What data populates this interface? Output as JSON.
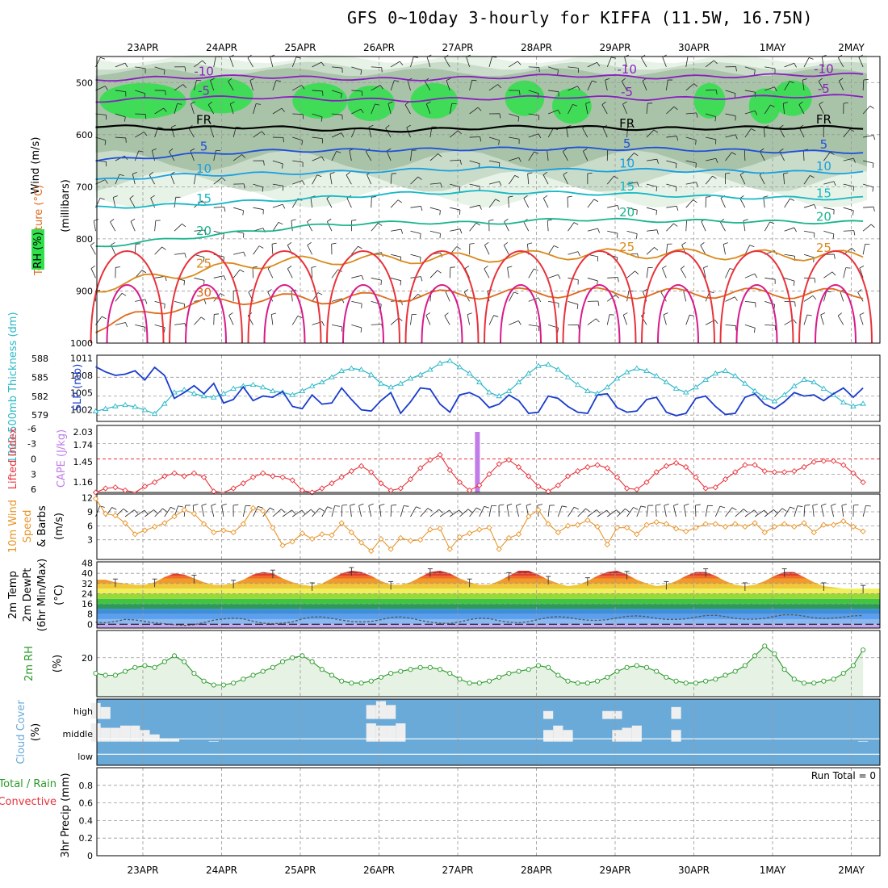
{
  "title": "GFS 0~10day 3-hourly for KIFFA (11.5W, 16.75N)",
  "dates": [
    "23APR",
    "24APR",
    "25APR",
    "26APR",
    "27APR",
    "28APR",
    "29APR",
    "30APR",
    "1MAY",
    "2MAY"
  ],
  "run_total": "Run Total = 0",
  "colors": {
    "purple": "#8a1fc0",
    "black": "#000000",
    "blue": "#1f4fd8",
    "lightblue": "#1aa0e0",
    "teal": "#17b8c4",
    "seagreen": "#19b48c",
    "orange": "#d98a1c",
    "darkorange": "#e06a1c",
    "red": "#e8323a",
    "magenta": "#d81a8a",
    "rhgreen": "#2ee04a",
    "slp": "#1a3ccc",
    "thick": "#2ab8c8",
    "cape": "#c07ce8",
    "li": "#e8323a",
    "wind": "#e8952a",
    "rh2m": "#2a9a2a",
    "cloud": "#6aaad8"
  },
  "chart_data": [
    {
      "type": "contour",
      "name": "upper-air cross-section",
      "ylabel_parts": [
        "Wind (m/s)",
        "Temperature (°C)",
        "RH (%)",
        "(millibars)"
      ],
      "ylim": [
        1000,
        450
      ],
      "yticks": [
        500,
        600,
        700,
        800,
        900,
        1000
      ],
      "isotherms": [
        {
          "label": "-10",
          "levels": [
            495,
            490,
            488,
            492,
            494,
            490,
            486,
            490,
            488,
            485
          ]
        },
        {
          "label": "-5",
          "levels": [
            535,
            530,
            528,
            532,
            534,
            530,
            527,
            531,
            529,
            526
          ]
        },
        {
          "label": "FR",
          "levels": [
            583,
            588,
            585,
            590,
            592,
            586,
            585,
            589,
            587,
            586
          ]
        },
        {
          "label": "5",
          "levels": [
            650,
            640,
            632,
            630,
            629,
            627,
            627,
            627,
            630,
            633
          ]
        },
        {
          "label": "10",
          "levels": [
            688,
            678,
            675,
            672,
            668,
            665,
            668,
            668,
            670,
            672
          ]
        },
        {
          "label": "15",
          "levels": [
            740,
            735,
            728,
            720,
            712,
            710,
            712,
            715,
            720,
            722
          ]
        },
        {
          "label": "20",
          "levels": [
            815,
            800,
            785,
            772,
            768,
            770,
            762,
            765,
            766,
            768
          ]
        },
        {
          "label": "25",
          "levels": [
            895,
            868,
            848,
            840,
            838,
            835,
            830,
            828,
            830,
            832
          ]
        },
        {
          "label": "30",
          "levels": [
            970,
            930,
            915,
            915,
            910,
            905,
            903,
            905,
            904,
            905
          ]
        }
      ],
      "contour_labels": [
        "-10",
        "-5",
        "FR",
        "5",
        "10",
        "15",
        "20",
        "25",
        "30"
      ]
    },
    {
      "type": "line",
      "name": "SLP and thickness",
      "ylabel_left": "1000-500mb Thickness (dm)",
      "ylabel_right": "SLP (mb)",
      "yticks_thickness": [
        579,
        582,
        585,
        588
      ],
      "yticks_slp": [
        1002,
        1005,
        1008,
        1011
      ],
      "slp_mb": [
        1009.5,
        1008.6,
        1008.0,
        1008.2,
        1008.8,
        1007.2,
        1009.4,
        1008.0,
        1004.0,
        1005.0,
        1006.2,
        1004.8,
        1006.6,
        1003.2,
        1003.8,
        1006.0,
        1003.6,
        1004.4,
        1004.2,
        1005.2,
        1002.6,
        1002.2,
        1004.6,
        1003.0,
        1003.2,
        1005.8,
        1003.8,
        1002.0,
        1001.8,
        1003.6,
        1005.0,
        1001.4,
        1003.4,
        1005.8,
        1005.6,
        1003.0,
        1001.6,
        1004.6,
        1005.0,
        1004.2,
        1002.4,
        1003.0,
        1004.6,
        1003.6,
        1001.4,
        1001.6,
        1004.4,
        1004.0,
        1002.6,
        1001.6,
        1001.4,
        1004.6,
        1004.8,
        1002.4,
        1001.6,
        1001.8,
        1003.8,
        1004.2,
        1001.6,
        1001.0,
        1001.4,
        1004.0,
        1004.4,
        1002.6,
        1001.2,
        1001.4,
        1004.2,
        1004.8,
        1003.0,
        1002.2,
        1003.4,
        1005.0,
        1004.4,
        1004.6,
        1003.6,
        1004.8,
        1005.8,
        1004.2,
        1005.8
      ],
      "thickness_dm": [
        579.6,
        580.0,
        580.4,
        580.6,
        580.3,
        579.8,
        579.2,
        580.8,
        582.6,
        583.0,
        582.4,
        582.0,
        581.8,
        582.4,
        583.2,
        583.6,
        583.8,
        583.4,
        582.8,
        582.6,
        582.2,
        582.8,
        583.6,
        584.2,
        585.0,
        586.0,
        586.4,
        586.2,
        585.4,
        584.0,
        583.4,
        584.0,
        584.8,
        585.4,
        586.2,
        587.2,
        587.6,
        586.6,
        585.6,
        584.2,
        582.6,
        582.0,
        582.8,
        584.2,
        585.6,
        586.8,
        587.0,
        586.2,
        585.0,
        583.8,
        582.8,
        582.4,
        583.4,
        584.8,
        585.8,
        586.4,
        586.0,
        585.2,
        584.2,
        583.2,
        582.6,
        583.4,
        584.6,
        585.6,
        586.0,
        585.2,
        584.0,
        582.8,
        581.8,
        581.2,
        582.2,
        583.6,
        584.6,
        584.2,
        583.2,
        582.2,
        581.0,
        580.4,
        580.8
      ]
    },
    {
      "type": "line",
      "name": "Lifted index and CAPE",
      "ylabel_left": "Lifted Index",
      "ylabel_right": "CAPE (J/kg)",
      "yticks_li": [
        "-6",
        "-3",
        "0",
        "3",
        "6"
      ],
      "yticks_cape": [
        "2.03",
        "1.74",
        "1.45",
        "1.16"
      ],
      "cape_spike_day": 4.25,
      "lifted_index": [
        6.6,
        5.8,
        5.6,
        6.2,
        6.8,
        5.4,
        4.6,
        3.4,
        2.8,
        3.4,
        2.8,
        3.6,
        6.4,
        6.8,
        5.8,
        4.8,
        3.6,
        2.8,
        3.4,
        3.6,
        4.2,
        6.2,
        6.6,
        5.8,
        4.8,
        3.6,
        2.4,
        1.4,
        2.6,
        4.8,
        6.2,
        5.8,
        4.0,
        1.8,
        0.2,
        -0.8,
        2.2,
        4.6,
        6.2,
        5.2,
        3.0,
        1.0,
        0.2,
        1.6,
        3.4,
        5.4,
        6.4,
        5.2,
        3.4,
        2.4,
        1.6,
        1.2,
        1.8,
        3.6,
        5.8,
        6.0,
        4.6,
        2.6,
        1.4,
        0.8,
        1.6,
        3.6,
        5.8,
        5.6,
        4.0,
        2.6,
        1.2,
        1.2,
        2.4,
        2.6,
        2.6,
        2.4,
        1.6,
        0.6,
        0.4,
        0.4,
        1.2,
        2.8,
        4.6
      ]
    },
    {
      "type": "line",
      "name": "10m wind",
      "ylabel_parts": [
        "10m Wind",
        "Speed",
        "& Barbs",
        "(m/s)"
      ],
      "yticks": [
        3,
        6,
        9,
        12
      ],
      "wind_speed_ms": [
        11.8,
        8.6,
        8.2,
        6.6,
        4.2,
        5.0,
        5.8,
        6.6,
        8.0,
        9.4,
        8.6,
        6.4,
        4.6,
        5.0,
        4.6,
        6.4,
        9.8,
        9.2,
        5.6,
        1.8,
        2.6,
        4.4,
        3.2,
        4.2,
        4.0,
        6.6,
        4.6,
        2.4,
        0.6,
        3.2,
        1.0,
        3.4,
        2.8,
        3.0,
        5.2,
        5.4,
        1.0,
        3.6,
        4.4,
        5.2,
        5.6,
        1.0,
        3.4,
        4.2,
        8.0,
        9.4,
        6.4,
        4.6,
        6.0,
        6.2,
        7.2,
        5.8,
        2.0,
        5.6,
        5.6,
        4.2,
        6.2,
        6.8,
        6.4,
        5.4,
        4.8,
        5.6,
        6.4,
        6.4,
        5.8,
        6.4,
        5.8,
        6.6,
        4.6,
        5.8,
        6.4,
        5.8,
        6.6,
        4.6,
        6.2,
        6.2,
        7.0,
        5.8,
        4.8
      ]
    },
    {
      "type": "area",
      "name": "2m temperature and dew point",
      "ylabel_parts": [
        "2m Temp",
        "2m DewPt",
        "(6hr Min/Max)",
        "(°C)"
      ],
      "yticks": [
        0,
        8,
        16,
        24,
        32,
        40,
        48
      ],
      "temp_c": [
        35,
        35,
        33,
        32,
        31,
        31,
        33,
        37,
        40,
        39,
        36,
        33,
        31,
        31,
        32,
        35,
        39,
        41,
        40,
        36,
        33,
        31,
        30,
        32,
        36,
        40,
        42,
        41,
        38,
        34,
        31,
        31,
        33,
        37,
        41,
        42,
        40,
        36,
        33,
        31,
        31,
        34,
        38,
        42,
        42,
        39,
        35,
        32,
        30,
        31,
        34,
        38,
        41,
        42,
        39,
        35,
        32,
        30,
        31,
        34,
        38,
        41,
        41,
        38,
        34,
        31,
        30,
        31,
        34,
        38,
        41,
        41,
        37,
        33,
        30,
        29,
        28,
        28,
        28
      ],
      "dewpoint_c": [
        1.5,
        1.2,
        2.2,
        3.8,
        3.4,
        2.2,
        1.0,
        0.4,
        -0.4,
        -1.0,
        -0.4,
        1.4,
        3.2,
        4.2,
        4.8,
        4.2,
        2.4,
        0.8,
        0.4,
        0.8,
        1.8,
        4.2,
        5.6,
        5.8,
        4.6,
        3.2,
        2.2,
        1.8,
        2.2,
        3.6,
        5.4,
        5.8,
        4.8,
        3.0,
        1.6,
        0.8,
        0.6,
        1.8,
        3.6,
        4.8,
        4.4,
        2.8,
        1.6,
        1.2,
        2.0,
        3.8,
        5.4,
        6.0,
        5.4,
        4.0,
        3.2,
        3.0,
        3.6,
        5.0,
        6.2,
        6.6,
        6.0,
        4.6,
        3.8,
        3.8,
        4.2,
        5.6,
        6.8,
        7.0,
        6.0,
        4.6,
        4.0,
        4.0,
        4.6,
        6.2,
        7.4,
        7.4,
        6.4,
        5.0,
        4.6,
        4.8,
        5.6,
        6.6,
        6.8
      ]
    },
    {
      "type": "line",
      "name": "2m relative humidity",
      "ylabel": "2m RH",
      "ylabel_unit": "(%)",
      "yticks": [
        20
      ],
      "ylim": [
        0,
        34
      ],
      "rh_percent": [
        12,
        11,
        11,
        13,
        15,
        16,
        15,
        18,
        21,
        18,
        12,
        8,
        6,
        6,
        7,
        9,
        11,
        13,
        15,
        18,
        20,
        21,
        18,
        14,
        11,
        8,
        7,
        7,
        8,
        10,
        12,
        13,
        14,
        15,
        15,
        14,
        12,
        9,
        7,
        7,
        8,
        10,
        12,
        13,
        14,
        16,
        15,
        11,
        8,
        7,
        7,
        8,
        10,
        13,
        15,
        16,
        15,
        13,
        10,
        8,
        7,
        7,
        8,
        9,
        11,
        13,
        16,
        21,
        26,
        22,
        14,
        9,
        7,
        7,
        8,
        9,
        12,
        16,
        24
      ]
    },
    {
      "type": "bar",
      "name": "cloud cover",
      "ylabel": "Cloud Cover",
      "ylabel_unit": "(%)",
      "layers": [
        "high",
        "middle",
        "low"
      ],
      "high_percent": [
        80,
        60,
        0,
        0,
        0,
        0,
        0,
        0,
        0,
        0,
        0,
        0,
        0,
        0,
        0,
        0,
        0,
        0,
        0,
        0,
        0,
        0,
        0,
        0,
        0,
        0,
        0,
        0,
        70,
        90,
        70,
        0,
        0,
        0,
        0,
        0,
        0,
        0,
        0,
        0,
        0,
        0,
        0,
        0,
        0,
        0,
        40,
        0,
        0,
        0,
        0,
        0,
        40,
        40,
        0,
        0,
        0,
        0,
        0,
        60,
        0,
        0,
        0,
        0,
        0,
        0,
        0,
        0,
        0,
        0,
        0,
        0,
        0,
        0,
        0,
        0,
        0,
        0,
        0
      ],
      "middle_percent": [
        90,
        70,
        70,
        80,
        80,
        60,
        40,
        20,
        20,
        0,
        0,
        0,
        10,
        0,
        0,
        0,
        0,
        0,
        0,
        0,
        0,
        0,
        0,
        0,
        0,
        0,
        0,
        0,
        90,
        80,
        80,
        90,
        0,
        0,
        0,
        0,
        0,
        0,
        0,
        0,
        0,
        0,
        0,
        0,
        0,
        0,
        60,
        80,
        60,
        0,
        0,
        0,
        0,
        60,
        70,
        80,
        0,
        0,
        0,
        60,
        0,
        0,
        0,
        0,
        0,
        0,
        0,
        0,
        0,
        0,
        0,
        0,
        0,
        0,
        0,
        0,
        0,
        0,
        10
      ]
    },
    {
      "type": "bar",
      "name": "3hr precipitation",
      "ylabel_parts": [
        "Total / Rain",
        "Convective",
        "3hr Precip (mm)"
      ],
      "yticks": [
        "0",
        "0.2",
        "0.4",
        "0.6",
        "0.8"
      ],
      "ylim": [
        0,
        1
      ],
      "precip_mm": []
    }
  ]
}
